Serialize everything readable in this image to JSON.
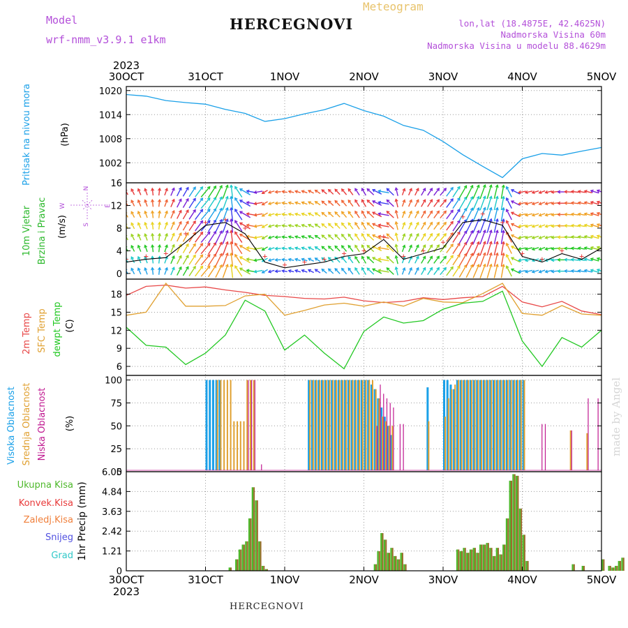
{
  "header": {
    "model_label": "Model",
    "model_name": "wrf-nmm_v3.9.1 e1km",
    "meteogram_label": "Meteogram",
    "station": "HERCEGNOVI",
    "lonlat": "lon,lat (18.4875E, 42.4625N)",
    "altitude": "Nadmorska Visina 60m",
    "model_altitude": "Nadmorska Visina u modelu 88.4629m"
  },
  "footer": {
    "station": "HERCEGNOVI",
    "credit": "made by Angel"
  },
  "colors": {
    "pressure": "#1aa0e8",
    "wind_label": "#2ab82a",
    "temp2m": "#e84848",
    "sfc_temp": "#e0a030",
    "dewpoint": "#22c822",
    "high_cloud": "#1aa0e8",
    "mid_cloud": "#e0a030",
    "low_cloud": "#c01890",
    "total_precip": "#4db82a",
    "convective_precip": "#e83a3a",
    "frozen_precip": "#f07f3a",
    "snow": "#5050e0",
    "hail": "#30c8c8",
    "wind_speed_line": "#000000",
    "gust_marker": "#e83a3a"
  },
  "chart_data": [
    {
      "type": "line",
      "id": "pressure",
      "ylabel_lines": [
        "Pritisak na nivou mora",
        "(hPa)"
      ],
      "x_ticks": [
        "30OCT",
        "31OCT",
        "1NOV",
        "2NOV",
        "3NOV",
        "4NOV",
        "5NOV"
      ],
      "year_label": "2023",
      "ylim": [
        997,
        1021
      ],
      "y_ticks": [
        1002,
        1008,
        1014,
        1020
      ],
      "x_hours": [
        0,
        6,
        12,
        18,
        24,
        30,
        36,
        42,
        48,
        54,
        60,
        66,
        72,
        78,
        84,
        90,
        96,
        102,
        108,
        114,
        120,
        126,
        132,
        138,
        144
      ],
      "series": [
        {
          "values": [
            1019.0,
            1018.6,
            1017.5,
            1017.0,
            1016.6,
            1015.3,
            1014.3,
            1012.3,
            1013.0,
            1014.2,
            1015.2,
            1016.8,
            1015.0,
            1013.6,
            1011.3,
            1010.1,
            1007.3,
            1004.0,
            1001.1,
            998.3,
            1003.0,
            1004.3,
            1003.9,
            1004.9,
            1005.8
          ]
        }
      ]
    },
    {
      "type": "line",
      "id": "wind",
      "ylabel_lines": [
        "10m Vjetar",
        "Brzina i Pravac",
        "(m/s)"
      ],
      "compass": [
        "N",
        "W",
        "E",
        "S"
      ],
      "ylim": [
        -1,
        16
      ],
      "y_ticks": [
        0,
        4,
        8,
        12,
        16
      ],
      "x_hours": [
        0,
        6,
        12,
        18,
        24,
        30,
        36,
        42,
        48,
        54,
        60,
        66,
        72,
        78,
        84,
        90,
        96,
        102,
        108,
        114,
        120,
        126,
        132,
        138,
        144
      ],
      "series": [
        {
          "name": "speed",
          "values": [
            2.0,
            2.5,
            2.8,
            5.5,
            8.5,
            9.0,
            7.0,
            2.0,
            1.0,
            1.5,
            2.0,
            3.0,
            3.5,
            6.0,
            2.5,
            3.5,
            4.5,
            9.0,
            9.5,
            8.5,
            3.0,
            2.0,
            3.5,
            2.5,
            4.5
          ]
        },
        {
          "name": "gust",
          "values": [
            2.5,
            3.0,
            3.5,
            7.0,
            9.0,
            9.5,
            8.0,
            3.0,
            1.5,
            2.0,
            2.5,
            3.5,
            4.0,
            6.5,
            3.0,
            4.0,
            5.5,
            10.0,
            10.5,
            9.0,
            3.5,
            2.5,
            4.0,
            3.0,
            8.5
          ]
        }
      ],
      "wind_dir_deg": [
        150,
        160,
        200,
        210,
        220,
        200,
        120,
        60,
        100,
        110,
        130,
        140,
        150,
        100,
        200,
        210,
        220,
        210,
        200,
        190,
        80,
        70,
        90,
        100,
        110
      ]
    },
    {
      "type": "line",
      "id": "temperature",
      "ylabel_lines": [
        "2m Temp",
        "SFC Temp",
        "dewpt Temp",
        "(C)"
      ],
      "ylim": [
        4.5,
        20.5
      ],
      "y_ticks": [
        6,
        9,
        12,
        15,
        18
      ],
      "x_hours": [
        0,
        6,
        12,
        18,
        24,
        30,
        36,
        42,
        48,
        54,
        60,
        66,
        72,
        78,
        84,
        90,
        96,
        102,
        108,
        114,
        120,
        126,
        132,
        138,
        144
      ],
      "series": [
        {
          "name": "2m Temp",
          "values": [
            17.8,
            19.3,
            19.5,
            19.0,
            19.2,
            18.7,
            18.3,
            17.8,
            17.6,
            17.3,
            17.2,
            17.5,
            16.9,
            16.6,
            16.8,
            17.4,
            17.1,
            17.4,
            17.6,
            19.3,
            16.7,
            15.9,
            16.8,
            15.2,
            14.6
          ]
        },
        {
          "name": "SFC Temp",
          "values": [
            14.5,
            15.0,
            19.8,
            16.0,
            16.0,
            16.1,
            17.7,
            18.0,
            14.5,
            15.3,
            16.2,
            16.5,
            16.0,
            16.7,
            16.0,
            17.3,
            16.7,
            16.6,
            18.1,
            19.8,
            14.8,
            14.5,
            16.1,
            14.7,
            14.5
          ]
        },
        {
          "name": "dewpt Temp",
          "values": [
            12.5,
            9.5,
            9.2,
            6.3,
            8.2,
            11.2,
            17.0,
            15.2,
            8.7,
            11.2,
            8.2,
            5.6,
            11.8,
            14.2,
            13.2,
            13.6,
            15.5,
            16.5,
            16.8,
            18.5,
            10.2,
            6.0,
            10.8,
            9.2,
            12.0
          ]
        }
      ]
    },
    {
      "type": "bar",
      "id": "clouds",
      "ylabel_lines": [
        "Visoka Oblacnost",
        "Srednja Oblacnost",
        "Niska Oblacnost",
        "(%)"
      ],
      "ylim": [
        0,
        105
      ],
      "y_ticks": [
        0,
        25,
        50,
        75,
        100
      ],
      "x_hours": [
        24,
        25,
        26,
        27,
        28,
        29,
        30,
        31,
        32,
        33,
        34,
        35,
        36,
        37,
        38,
        40,
        55,
        56,
        57,
        58,
        59,
        60,
        61,
        62,
        63,
        64,
        65,
        66,
        67,
        68,
        69,
        70,
        71,
        72,
        73,
        74,
        75,
        76,
        77,
        78,
        79,
        80,
        82,
        83,
        91,
        96,
        97,
        98,
        99,
        100,
        101,
        102,
        103,
        104,
        105,
        106,
        107,
        108,
        109,
        110,
        111,
        112,
        113,
        114,
        115,
        116,
        117,
        118,
        119,
        120,
        125,
        126,
        134,
        139,
        142
      ],
      "series": [
        {
          "name": "high",
          "values": [
            100,
            100,
            100,
            100,
            100,
            0,
            0,
            0,
            0,
            0,
            0,
            0,
            0,
            0,
            0,
            0,
            100,
            100,
            100,
            100,
            100,
            100,
            100,
            100,
            100,
            100,
            100,
            100,
            100,
            100,
            100,
            100,
            100,
            100,
            100,
            95,
            90,
            80,
            70,
            60,
            50,
            40,
            0,
            0,
            92,
            100,
            100,
            95,
            90,
            100,
            100,
            100,
            100,
            100,
            100,
            100,
            100,
            100,
            100,
            100,
            100,
            100,
            100,
            100,
            100,
            100,
            100,
            100,
            100,
            100,
            0,
            0,
            0,
            0,
            0
          ]
        },
        {
          "name": "mid",
          "values": [
            0,
            0,
            0,
            100,
            100,
            100,
            100,
            100,
            55,
            55,
            55,
            55,
            100,
            100,
            100,
            0,
            100,
            100,
            100,
            100,
            100,
            100,
            100,
            100,
            100,
            100,
            100,
            100,
            100,
            100,
            100,
            100,
            100,
            100,
            100,
            100,
            90,
            80,
            60,
            55,
            50,
            50,
            0,
            0,
            55,
            60,
            80,
            90,
            95,
            100,
            100,
            100,
            100,
            100,
            100,
            100,
            100,
            100,
            100,
            100,
            100,
            100,
            100,
            100,
            100,
            100,
            100,
            100,
            100,
            100,
            0,
            0,
            45,
            42,
            0
          ]
        },
        {
          "name": "low",
          "values": [
            0,
            0,
            0,
            0,
            0,
            0,
            0,
            0,
            0,
            0,
            0,
            0,
            100,
            100,
            100,
            8,
            0,
            0,
            0,
            0,
            0,
            0,
            0,
            0,
            0,
            0,
            0,
            0,
            0,
            0,
            0,
            0,
            0,
            0,
            0,
            0,
            50,
            95,
            85,
            80,
            75,
            70,
            52,
            52,
            0,
            0,
            0,
            0,
            0,
            0,
            0,
            0,
            0,
            0,
            0,
            0,
            0,
            0,
            0,
            0,
            0,
            0,
            0,
            0,
            0,
            0,
            0,
            0,
            0,
            0,
            52,
            52,
            45,
            80,
            80
          ]
        }
      ]
    },
    {
      "type": "bar",
      "id": "precip",
      "ylabel_lines": [
        "1hr Precip (mm)"
      ],
      "legend": [
        "Ukupna Kisa",
        "Konvek.Kisa",
        "Zaledj.Kisa",
        "Snijeg",
        "Grad"
      ],
      "ylim": [
        0,
        6.05
      ],
      "y_ticks": [
        0,
        1.21,
        2.42,
        3.63,
        4.84,
        6.05
      ],
      "y_tick_labels": [
        "0",
        "1.21",
        "2.42",
        "3.63",
        "4.84",
        "6.05"
      ],
      "x_ticks": [
        "30OCT",
        "31OCT",
        "1NOV",
        "2NOV",
        "3NOV",
        "4NOV",
        "5NOV"
      ],
      "year_label": "2023",
      "x_hours": [
        31,
        33,
        34,
        35,
        36,
        37,
        38,
        39,
        40,
        41,
        42,
        43,
        75,
        76,
        77,
        78,
        79,
        80,
        81,
        82,
        83,
        84,
        100,
        101,
        102,
        103,
        104,
        105,
        106,
        107,
        108,
        109,
        110,
        111,
        112,
        113,
        114,
        115,
        116,
        117,
        118,
        119,
        120,
        121,
        122,
        123,
        124,
        125,
        135,
        138,
        144,
        146,
        147,
        148,
        149,
        150
      ],
      "series": [
        {
          "name": "Ukupna Kisa",
          "values": [
            0.2,
            0.7,
            1.3,
            1.6,
            1.8,
            3.2,
            5.1,
            4.3,
            1.8,
            0.3,
            0.1,
            0.0,
            0.4,
            1.2,
            2.3,
            1.9,
            1.1,
            1.4,
            0.9,
            0.7,
            1.1,
            0.4,
            1.3,
            1.2,
            1.4,
            1.1,
            1.3,
            1.4,
            1.1,
            1.6,
            1.6,
            1.7,
            1.4,
            0.9,
            1.4,
            1.0,
            1.6,
            3.2,
            5.5,
            5.9,
            5.8,
            3.8,
            2.2,
            0.6,
            0.0,
            0.0,
            0.0,
            0.0,
            0.4,
            0.3,
            0.7,
            0.3,
            0.2,
            0.3,
            0.6,
            0.8
          ]
        },
        {
          "name": "Konvek.Kisa",
          "values": [
            0.2,
            0.7,
            1.3,
            1.6,
            1.8,
            3.2,
            5.1,
            4.3,
            1.8,
            0.3,
            0.1,
            0.0,
            0.4,
            1.2,
            2.3,
            1.9,
            1.1,
            1.4,
            0.9,
            0.7,
            1.1,
            0.4,
            1.3,
            1.2,
            1.4,
            1.1,
            1.3,
            1.4,
            1.1,
            1.6,
            1.6,
            1.7,
            1.4,
            0.9,
            1.4,
            1.0,
            1.6,
            3.2,
            5.5,
            5.9,
            5.8,
            3.8,
            2.2,
            0.6,
            0.0,
            0.0,
            0.0,
            0.0,
            0.4,
            0.3,
            0.7,
            0.3,
            0.2,
            0.3,
            0.6,
            0.8
          ]
        }
      ]
    }
  ]
}
